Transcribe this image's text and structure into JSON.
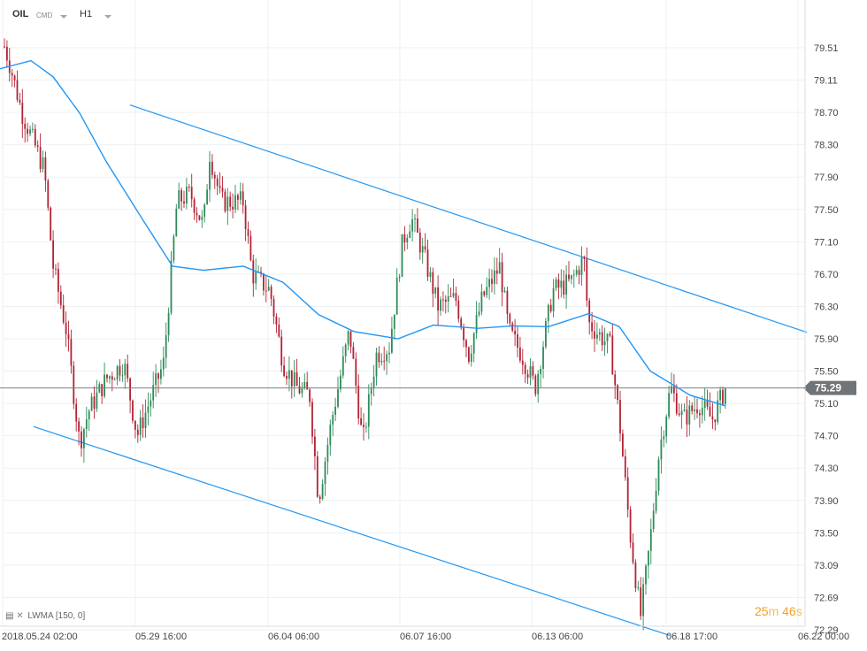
{
  "header": {
    "symbol": "OIL",
    "instrument_type": "CMD",
    "timeframe": "H1"
  },
  "indicator": {
    "label": "LWMA",
    "params": "[150,  0]"
  },
  "countdown": {
    "minutes": "25",
    "minutes_unit": "m",
    "seconds": "46",
    "seconds_unit": "s"
  },
  "colors": {
    "up": "#2e8b57",
    "down": "#b22234",
    "ma": "#2196f3",
    "channel": "#2196f3",
    "price_tag": "#6f7478",
    "countdown": "#f0a020"
  },
  "chart_data": {
    "type": "candlestick",
    "symbol": "OIL",
    "timeframe": "H1",
    "y_ticks": [
      "79.51",
      "79.11",
      "78.70",
      "78.30",
      "77.90",
      "77.50",
      "77.10",
      "76.70",
      "76.30",
      "75.90",
      "75.50",
      "75.10",
      "74.70",
      "74.30",
      "73.90",
      "73.50",
      "73.09",
      "72.69",
      "72.29"
    ],
    "ylim": [
      72.2,
      79.9
    ],
    "x_ticks": [
      "2018.05.24  02:00",
      "05.29  16:00",
      "06.04  06:00",
      "06.07  16:00",
      "06.13  06:00",
      "06.18  17:00",
      "06.22  00:00"
    ],
    "current_price": 75.29,
    "current_price_label": "75.29",
    "ohlc_keypoints": [
      [
        0,
        79.7
      ],
      [
        10,
        79.35
      ],
      [
        25,
        78.7
      ],
      [
        50,
        78.0
      ],
      [
        60,
        76.8
      ],
      [
        75,
        76.0
      ],
      [
        90,
        74.6
      ],
      [
        100,
        75.0
      ],
      [
        120,
        75.4
      ],
      [
        140,
        75.6
      ],
      [
        155,
        74.7
      ],
      [
        165,
        75.0
      ],
      [
        185,
        75.6
      ],
      [
        200,
        77.6
      ],
      [
        215,
        77.7
      ],
      [
        230,
        77.3
      ],
      [
        237,
        78.2
      ],
      [
        250,
        77.6
      ],
      [
        275,
        77.6
      ],
      [
        285,
        76.7
      ],
      [
        305,
        76.5
      ],
      [
        320,
        75.6
      ],
      [
        335,
        75.3
      ],
      [
        350,
        75.2
      ],
      [
        360,
        73.9
      ],
      [
        375,
        74.9
      ],
      [
        395,
        76.0
      ],
      [
        410,
        74.6
      ],
      [
        425,
        75.7
      ],
      [
        440,
        75.8
      ],
      [
        455,
        77.1
      ],
      [
        465,
        77.4
      ],
      [
        480,
        76.9
      ],
      [
        495,
        76.3
      ],
      [
        515,
        76.4
      ],
      [
        530,
        75.7
      ],
      [
        545,
        76.4
      ],
      [
        565,
        76.8
      ],
      [
        575,
        76.0
      ],
      [
        590,
        75.7
      ],
      [
        605,
        75.3
      ],
      [
        625,
        76.5
      ],
      [
        645,
        76.6
      ],
      [
        660,
        76.9
      ],
      [
        665,
        76.1
      ],
      [
        690,
        75.8
      ],
      [
        700,
        74.9
      ],
      [
        712,
        73.5
      ],
      [
        724,
        72.45
      ],
      [
        735,
        73.4
      ],
      [
        745,
        74.5
      ],
      [
        758,
        75.3
      ],
      [
        772,
        74.9
      ],
      [
        790,
        75.1
      ],
      [
        805,
        74.9
      ],
      [
        820,
        75.29
      ]
    ],
    "lwma_150": [
      [
        0,
        79.25
      ],
      [
        35,
        79.35
      ],
      [
        60,
        79.15
      ],
      [
        90,
        78.7
      ],
      [
        120,
        78.1
      ],
      [
        160,
        77.4
      ],
      [
        195,
        76.8
      ],
      [
        230,
        76.75
      ],
      [
        275,
        76.8
      ],
      [
        320,
        76.6
      ],
      [
        360,
        76.2
      ],
      [
        400,
        75.99
      ],
      [
        450,
        75.9
      ],
      [
        490,
        76.07
      ],
      [
        540,
        76.03
      ],
      [
        580,
        76.06
      ],
      [
        620,
        76.05
      ],
      [
        665,
        76.21
      ],
      [
        700,
        76.05
      ],
      [
        735,
        75.5
      ],
      [
        780,
        75.2
      ],
      [
        820,
        75.07
      ]
    ],
    "channel_upper": [
      [
        147,
        78.8
      ],
      [
        912,
        75.98
      ]
    ],
    "channel_lower": [
      [
        38,
        74.81
      ],
      [
        757,
        72.22
      ]
    ]
  }
}
